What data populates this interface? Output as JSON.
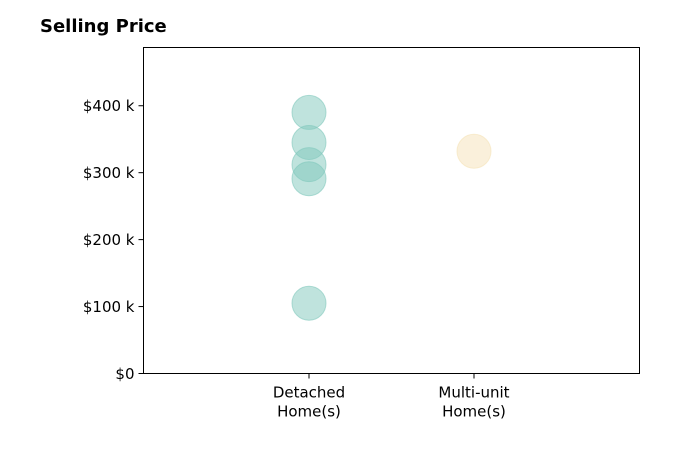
{
  "chart_data": {
    "type": "scatter",
    "title": "Selling Price",
    "xlabel": "",
    "ylabel": "",
    "categories": [
      [
        "Detached",
        "Home(s)"
      ],
      [
        "Multi-unit",
        "Home(s)"
      ]
    ],
    "y_ticks": [
      0,
      100,
      200,
      300,
      400
    ],
    "y_tick_labels": [
      "$0",
      "$100 k",
      "$200 k",
      "$300 k",
      "$400 k"
    ],
    "ylim": [
      0,
      487
    ],
    "grid": false,
    "series": [
      {
        "category_index": 0,
        "color": "#80c8bc",
        "values": [
          390,
          345,
          312,
          291,
          105
        ]
      },
      {
        "category_index": 1,
        "color": "#f5e2b8",
        "values": [
          332
        ]
      }
    ]
  }
}
